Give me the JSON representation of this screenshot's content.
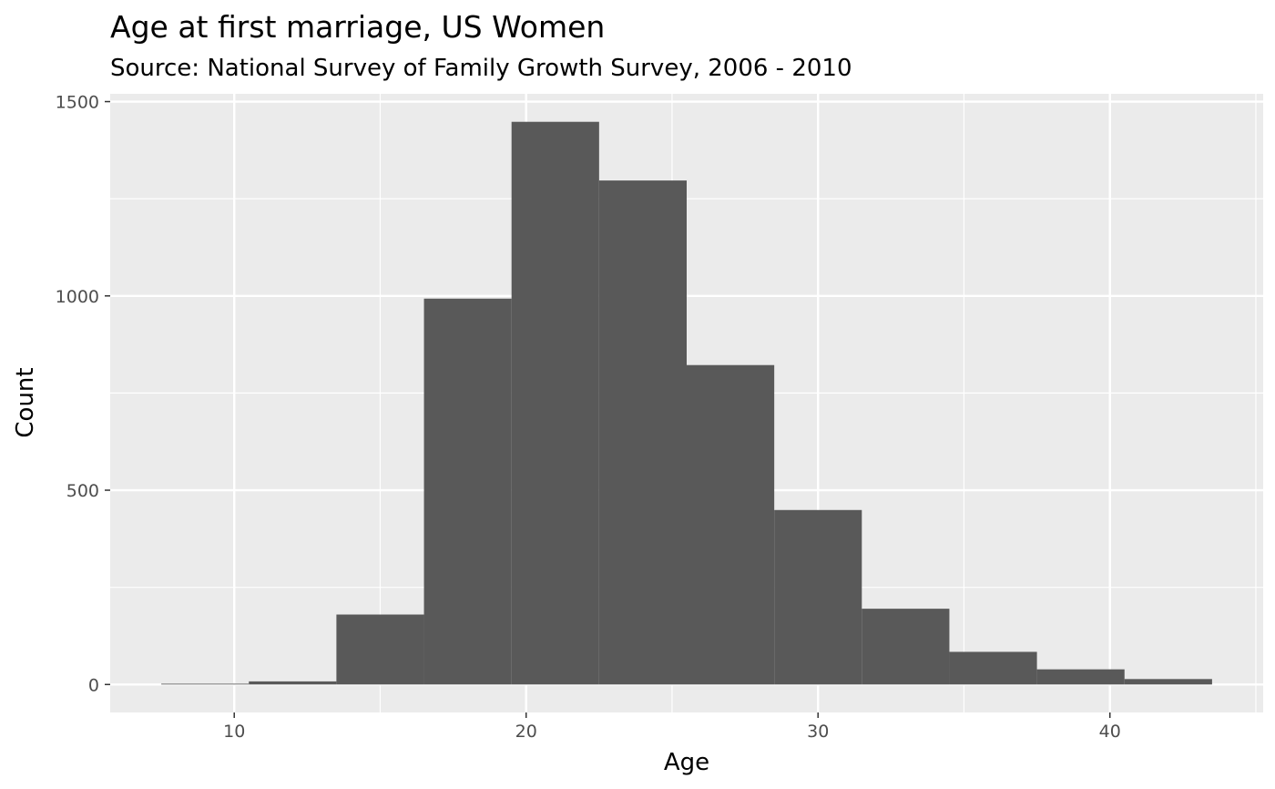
{
  "chart_data": {
    "type": "bar",
    "title": "Age at first marriage, US Women",
    "subtitle": "Source: National Survey of Family Growth Survey, 2006 - 2010",
    "xlabel": "Age",
    "ylabel": "Count",
    "bin_width": 3,
    "bins": [
      {
        "x0": 7.5,
        "x1": 10.5,
        "count": 2
      },
      {
        "x0": 10.5,
        "x1": 13.5,
        "count": 8
      },
      {
        "x0": 13.5,
        "x1": 16.5,
        "count": 180
      },
      {
        "x0": 16.5,
        "x1": 19.5,
        "count": 993
      },
      {
        "x0": 19.5,
        "x1": 22.5,
        "count": 1448
      },
      {
        "x0": 22.5,
        "x1": 25.5,
        "count": 1297
      },
      {
        "x0": 25.5,
        "x1": 28.5,
        "count": 822
      },
      {
        "x0": 28.5,
        "x1": 31.5,
        "count": 449
      },
      {
        "x0": 31.5,
        "x1": 34.5,
        "count": 195
      },
      {
        "x0": 34.5,
        "x1": 37.5,
        "count": 84
      },
      {
        "x0": 37.5,
        "x1": 40.5,
        "count": 39
      },
      {
        "x0": 40.5,
        "x1": 43.5,
        "count": 14
      }
    ],
    "xlim": [
      5.75,
      45.25
    ],
    "ylim": [
      -72,
      1520
    ],
    "x_ticks": [
      10,
      20,
      30,
      40
    ],
    "x_tick_labels": [
      "10",
      "20",
      "30",
      "40"
    ],
    "x_minor_ticks": [
      15,
      25,
      35,
      45
    ],
    "y_ticks": [
      0,
      500,
      1000,
      1500
    ],
    "y_tick_labels": [
      "0",
      "500",
      "1000",
      "1500"
    ],
    "y_minor_ticks": [
      250,
      750,
      1250
    ],
    "grid": true,
    "legend": "none",
    "colors": {
      "bar": "#595959",
      "panel": "#ebebeb",
      "grid": "#ffffff",
      "tick_text": "#4d4d4d",
      "tick_mark": "#333333"
    }
  }
}
